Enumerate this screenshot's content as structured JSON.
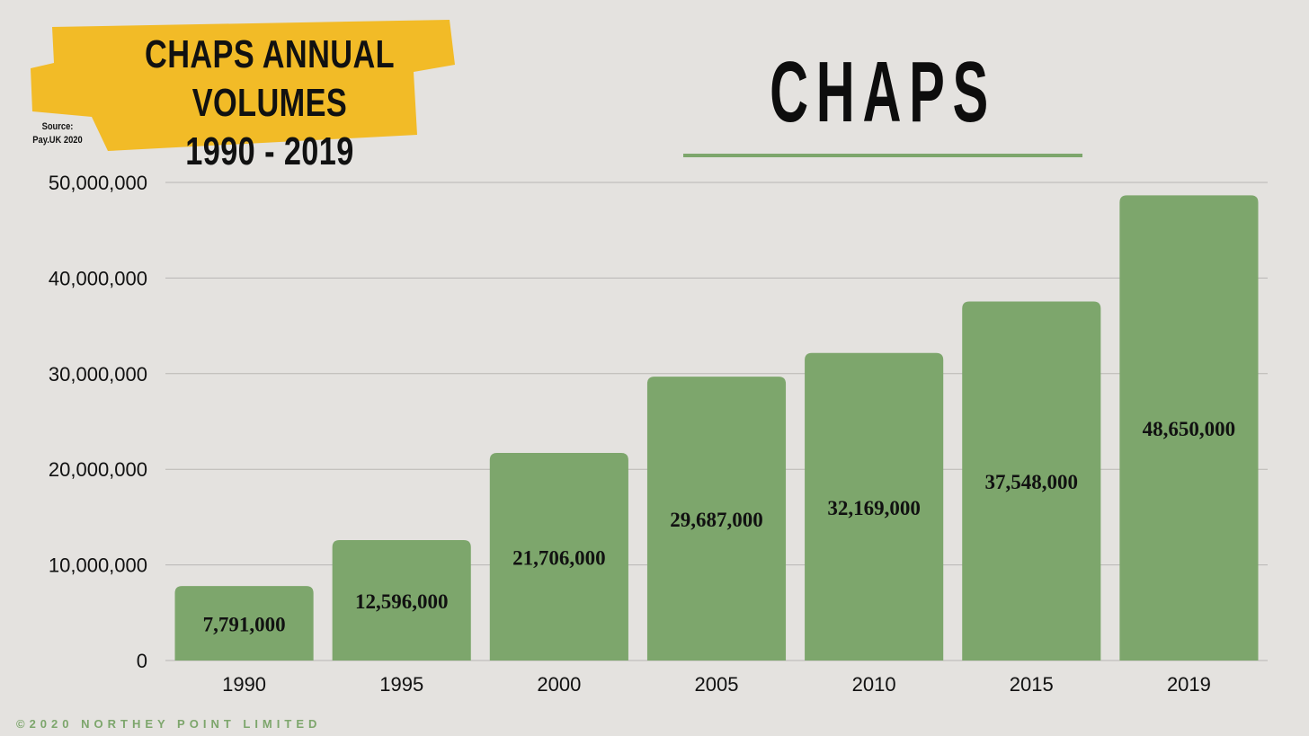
{
  "banner": {
    "title_line1": "CHAPS ANNUAL VOLUMES",
    "title_line2": "1990 - 2019",
    "source_line1": "Source:",
    "source_line2": "Pay.UK 2020",
    "color": "#f2bb27"
  },
  "headline": "CHAPS",
  "footer": "©2020 NORTHEY POINT LIMITED",
  "colors": {
    "bar": "#7da66c",
    "background": "#e4e2df",
    "grid": "#b9b7b4"
  },
  "chart_data": {
    "type": "bar",
    "categories": [
      "1990",
      "1995",
      "2000",
      "2005",
      "2010",
      "2015",
      "2019"
    ],
    "values": [
      7791000,
      12596000,
      21706000,
      29687000,
      32169000,
      37548000,
      48650000
    ],
    "value_labels": [
      "7,791,000",
      "12,596,000",
      "21,706,000",
      "29,687,000",
      "32,169,000",
      "37,548,000",
      "48,650,000"
    ],
    "yticks": [
      0,
      10000000,
      20000000,
      30000000,
      40000000,
      50000000
    ],
    "ytick_labels": [
      "0",
      "10,000,000",
      "20,000,000",
      "30,000,000",
      "40,000,000",
      "50,000,000"
    ],
    "ylim": [
      0,
      50000000
    ],
    "grid": true
  }
}
